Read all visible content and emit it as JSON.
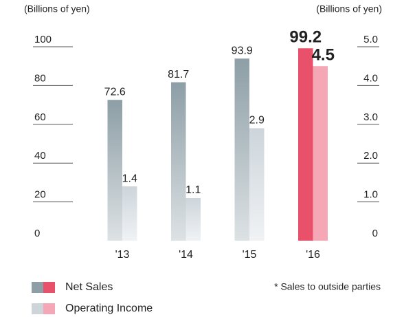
{
  "chart_data": {
    "type": "bar",
    "y_label": "(Billions of yen)",
    "y2_label": "(Billions of yen)",
    "note": "* Sales to outside parties",
    "categories": [
      "'13",
      "'14",
      "'15",
      "'16"
    ],
    "series": [
      {
        "name": "Net Sales",
        "colors": [
          "#8d9ea6",
          "#8d9ea6",
          "#8d9ea6",
          "#e9506a"
        ],
        "values": [
          72.6,
          81.7,
          93.9,
          99.2
        ]
      },
      {
        "name": "Operating Income",
        "axis": "y2",
        "colors": [
          "#cdd5db",
          "#cdd5db",
          "#cdd5db",
          "#f6a7b5"
        ],
        "values": [
          1.4,
          1.1,
          2.9,
          4.5
        ]
      }
    ],
    "ylim": [
      0,
      100
    ],
    "yticks": [
      0,
      20,
      40,
      60,
      80,
      100
    ],
    "y2lim": [
      0,
      5
    ],
    "y2ticks": [
      0,
      {
        "value": 1,
        "label": "1.0"
      },
      {
        "value": 2,
        "label": "2.0"
      },
      {
        "value": 3,
        "label": "3.0"
      },
      {
        "value": 4,
        "label": "4.0"
      },
      {
        "value": 5,
        "label": "5.0"
      }
    ]
  }
}
